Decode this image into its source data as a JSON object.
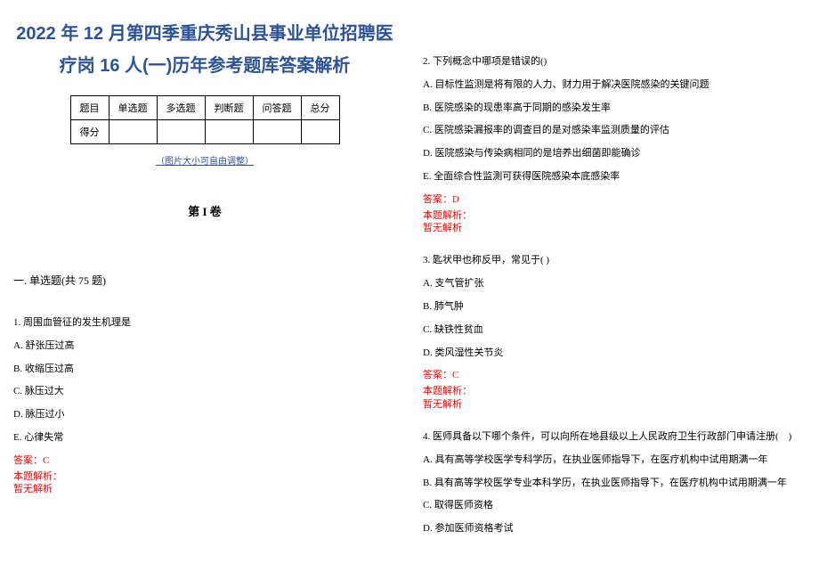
{
  "title_line1": "2022 年 12 月第四季重庆秀山县事业单位招聘医",
  "title_line2": "疗岗 16 人(一)历年参考题库答案解析",
  "table": {
    "headers": [
      "题目",
      "单选题",
      "多选题",
      "判断题",
      "问答题",
      "总分"
    ],
    "row_label": "得分"
  },
  "adjust_note": "（图片大小可自由调整）",
  "volume": "第 I 卷",
  "section": "一. 单选题(共 75 题)",
  "q1": {
    "stem": "1. 周围血管征的发生机理是",
    "a": "A. 舒张压过高",
    "b": "B. 收缩压过高",
    "c": "C. 脉压过大",
    "d": "D. 脉压过小",
    "e": "E. 心律失常",
    "answer": "答案：C",
    "explain_label": "本题解析：",
    "explain_content": "暂无解析"
  },
  "q2": {
    "stem": "2. 下列概念中哪项是错误的()",
    "a": "A. 目标性监测是将有限的人力、财力用于解决医院感染的关键问题",
    "b": "B. 医院感染的现患率高于同期的感染发生率",
    "c": "C. 医院感染漏报率的调查目的是对感染率监测质量的评估",
    "d": "D. 医院感染与传染病相同的是培养出细菌即能确诊",
    "e": "E. 全面综合性监測可获得医院感染本底感染率",
    "answer": "答案：D",
    "explain_label": "本题解析：",
    "explain_content": "暂无解析"
  },
  "q3": {
    "stem": "3. 匙状甲也称反甲，常见于( )",
    "a": "A. 支气管扩张",
    "b": "B. 肺气肿",
    "c": "C. 缺铁性贫血",
    "d": "D. 类风湿性关节炎",
    "answer": "答案：C",
    "explain_label": "本题解析：",
    "explain_content": "暂无解析"
  },
  "q4": {
    "stem": "4. 医师具备以下哪个条件，可以向所在地县级以上人民政府卫生行政部门申请注册(　)",
    "a": "A. 具有高等学校医学专科学历，在执业医师指导下，在医疗机构中试用期满一年",
    "b": "B. 具有高等学校医学专业本科学历，在执业医师指导下，在医疗机构中试用期满一年",
    "c": "C. 取得医师资格",
    "d": "D. 参加医师资格考试"
  }
}
